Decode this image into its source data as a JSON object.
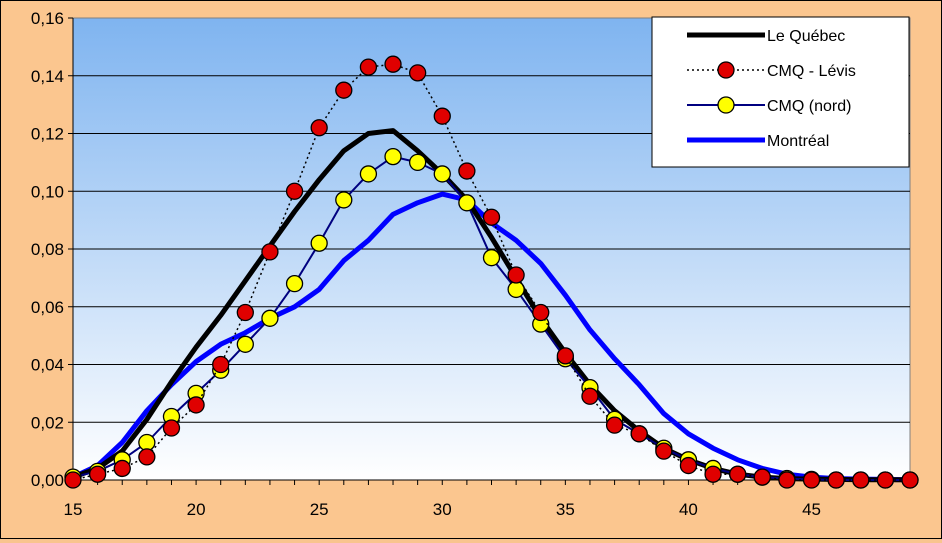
{
  "chart_data": {
    "type": "line",
    "title": "",
    "xlabel": "",
    "ylabel": "",
    "xlim": [
      15,
      49
    ],
    "ylim": [
      0,
      0.16
    ],
    "x_ticks": [
      15,
      20,
      25,
      30,
      35,
      40,
      45
    ],
    "y_ticks": [
      0,
      0.02,
      0.04,
      0.06,
      0.08,
      0.1,
      0.12,
      0.14,
      0.16
    ],
    "x_tick_labels": [
      "15",
      "20",
      "25",
      "30",
      "35",
      "40",
      "45"
    ],
    "y_tick_labels": [
      "0,00",
      "0,02",
      "0,04",
      "0,06",
      "0,08",
      "0,10",
      "0,12",
      "0,14",
      "0,16"
    ],
    "grid": "horizontal",
    "legend_position": "top-right",
    "plot_background": "gradient-blue-to-white",
    "series": [
      {
        "name": "Le Québec",
        "style": "solid-thick",
        "color": "#000000",
        "x": [
          15,
          16,
          17,
          18,
          19,
          20,
          21,
          22,
          23,
          24,
          25,
          26,
          27,
          28,
          29,
          30,
          31,
          32,
          33,
          34,
          35,
          36,
          37,
          38,
          39,
          40,
          41,
          42,
          43,
          44,
          45,
          46,
          47,
          48,
          49
        ],
        "y": [
          0.001,
          0.004,
          0.01,
          0.021,
          0.034,
          0.046,
          0.057,
          0.069,
          0.081,
          0.093,
          0.104,
          0.114,
          0.12,
          0.121,
          0.114,
          0.106,
          0.097,
          0.084,
          0.07,
          0.056,
          0.044,
          0.033,
          0.024,
          0.017,
          0.011,
          0.007,
          0.004,
          0.002,
          0.001,
          0.0005,
          0.0003,
          0.0002,
          0.0001,
          0.0001,
          0.0001
        ]
      },
      {
        "name": "CMQ - Lévis",
        "style": "dotted-with-red-markers",
        "color": "#000000",
        "marker_color": "#e00000",
        "x": [
          15,
          16,
          17,
          18,
          19,
          20,
          21,
          22,
          23,
          24,
          25,
          26,
          27,
          28,
          29,
          30,
          31,
          32,
          33,
          34,
          35,
          36,
          37,
          38,
          39,
          40,
          41,
          42,
          43,
          44,
          45,
          46,
          47,
          48,
          49
        ],
        "y": [
          0.0,
          0.002,
          0.004,
          0.008,
          0.018,
          0.026,
          0.04,
          0.058,
          0.079,
          0.1,
          0.122,
          0.135,
          0.143,
          0.144,
          0.141,
          0.126,
          0.107,
          0.091,
          0.071,
          0.058,
          0.043,
          0.029,
          0.019,
          0.016,
          0.01,
          0.005,
          0.002,
          0.002,
          0.001,
          0.0,
          0.0,
          0.0,
          0.0,
          0.0,
          0.0
        ]
      },
      {
        "name": "CMQ (nord)",
        "style": "solid-thin-with-yellow-markers",
        "color": "#000080",
        "marker_color": "#ffff00",
        "x": [
          15,
          16,
          17,
          18,
          19,
          20,
          21,
          22,
          23,
          24,
          25,
          26,
          27,
          28,
          29,
          30,
          31,
          32,
          33,
          34,
          35,
          36,
          37,
          38,
          39,
          40,
          41,
          42,
          43,
          44,
          45,
          46,
          47,
          48,
          49
        ],
        "y": [
          0.001,
          0.003,
          0.007,
          0.013,
          0.022,
          0.03,
          0.038,
          0.047,
          0.056,
          0.068,
          0.082,
          0.097,
          0.106,
          0.112,
          0.11,
          0.106,
          0.096,
          0.077,
          0.066,
          0.054,
          0.042,
          0.032,
          0.021,
          0.016,
          0.011,
          0.007,
          0.004,
          0.002,
          0.001,
          0.0005,
          0.0002,
          0.0,
          0.0,
          0.0,
          0.0
        ]
      },
      {
        "name": "Montréal",
        "style": "solid-thick",
        "color": "#0000ff",
        "x": [
          15,
          16,
          17,
          18,
          19,
          20,
          21,
          22,
          23,
          24,
          25,
          26,
          27,
          28,
          29,
          30,
          31,
          32,
          33,
          34,
          35,
          36,
          37,
          38,
          39,
          40,
          41,
          42,
          43,
          44,
          45,
          46,
          47,
          48,
          49
        ],
        "y": [
          0.001,
          0.005,
          0.013,
          0.024,
          0.033,
          0.041,
          0.047,
          0.051,
          0.056,
          0.06,
          0.066,
          0.076,
          0.083,
          0.092,
          0.096,
          0.099,
          0.097,
          0.089,
          0.083,
          0.075,
          0.064,
          0.052,
          0.042,
          0.033,
          0.023,
          0.016,
          0.011,
          0.007,
          0.004,
          0.002,
          0.001,
          0.0005,
          0.0003,
          0.0002,
          0.0001
        ]
      }
    ]
  },
  "colors": {
    "page_background": "#fbc68f",
    "plot_top": "#7fb4f0",
    "plot_bottom": "#ffffff"
  }
}
